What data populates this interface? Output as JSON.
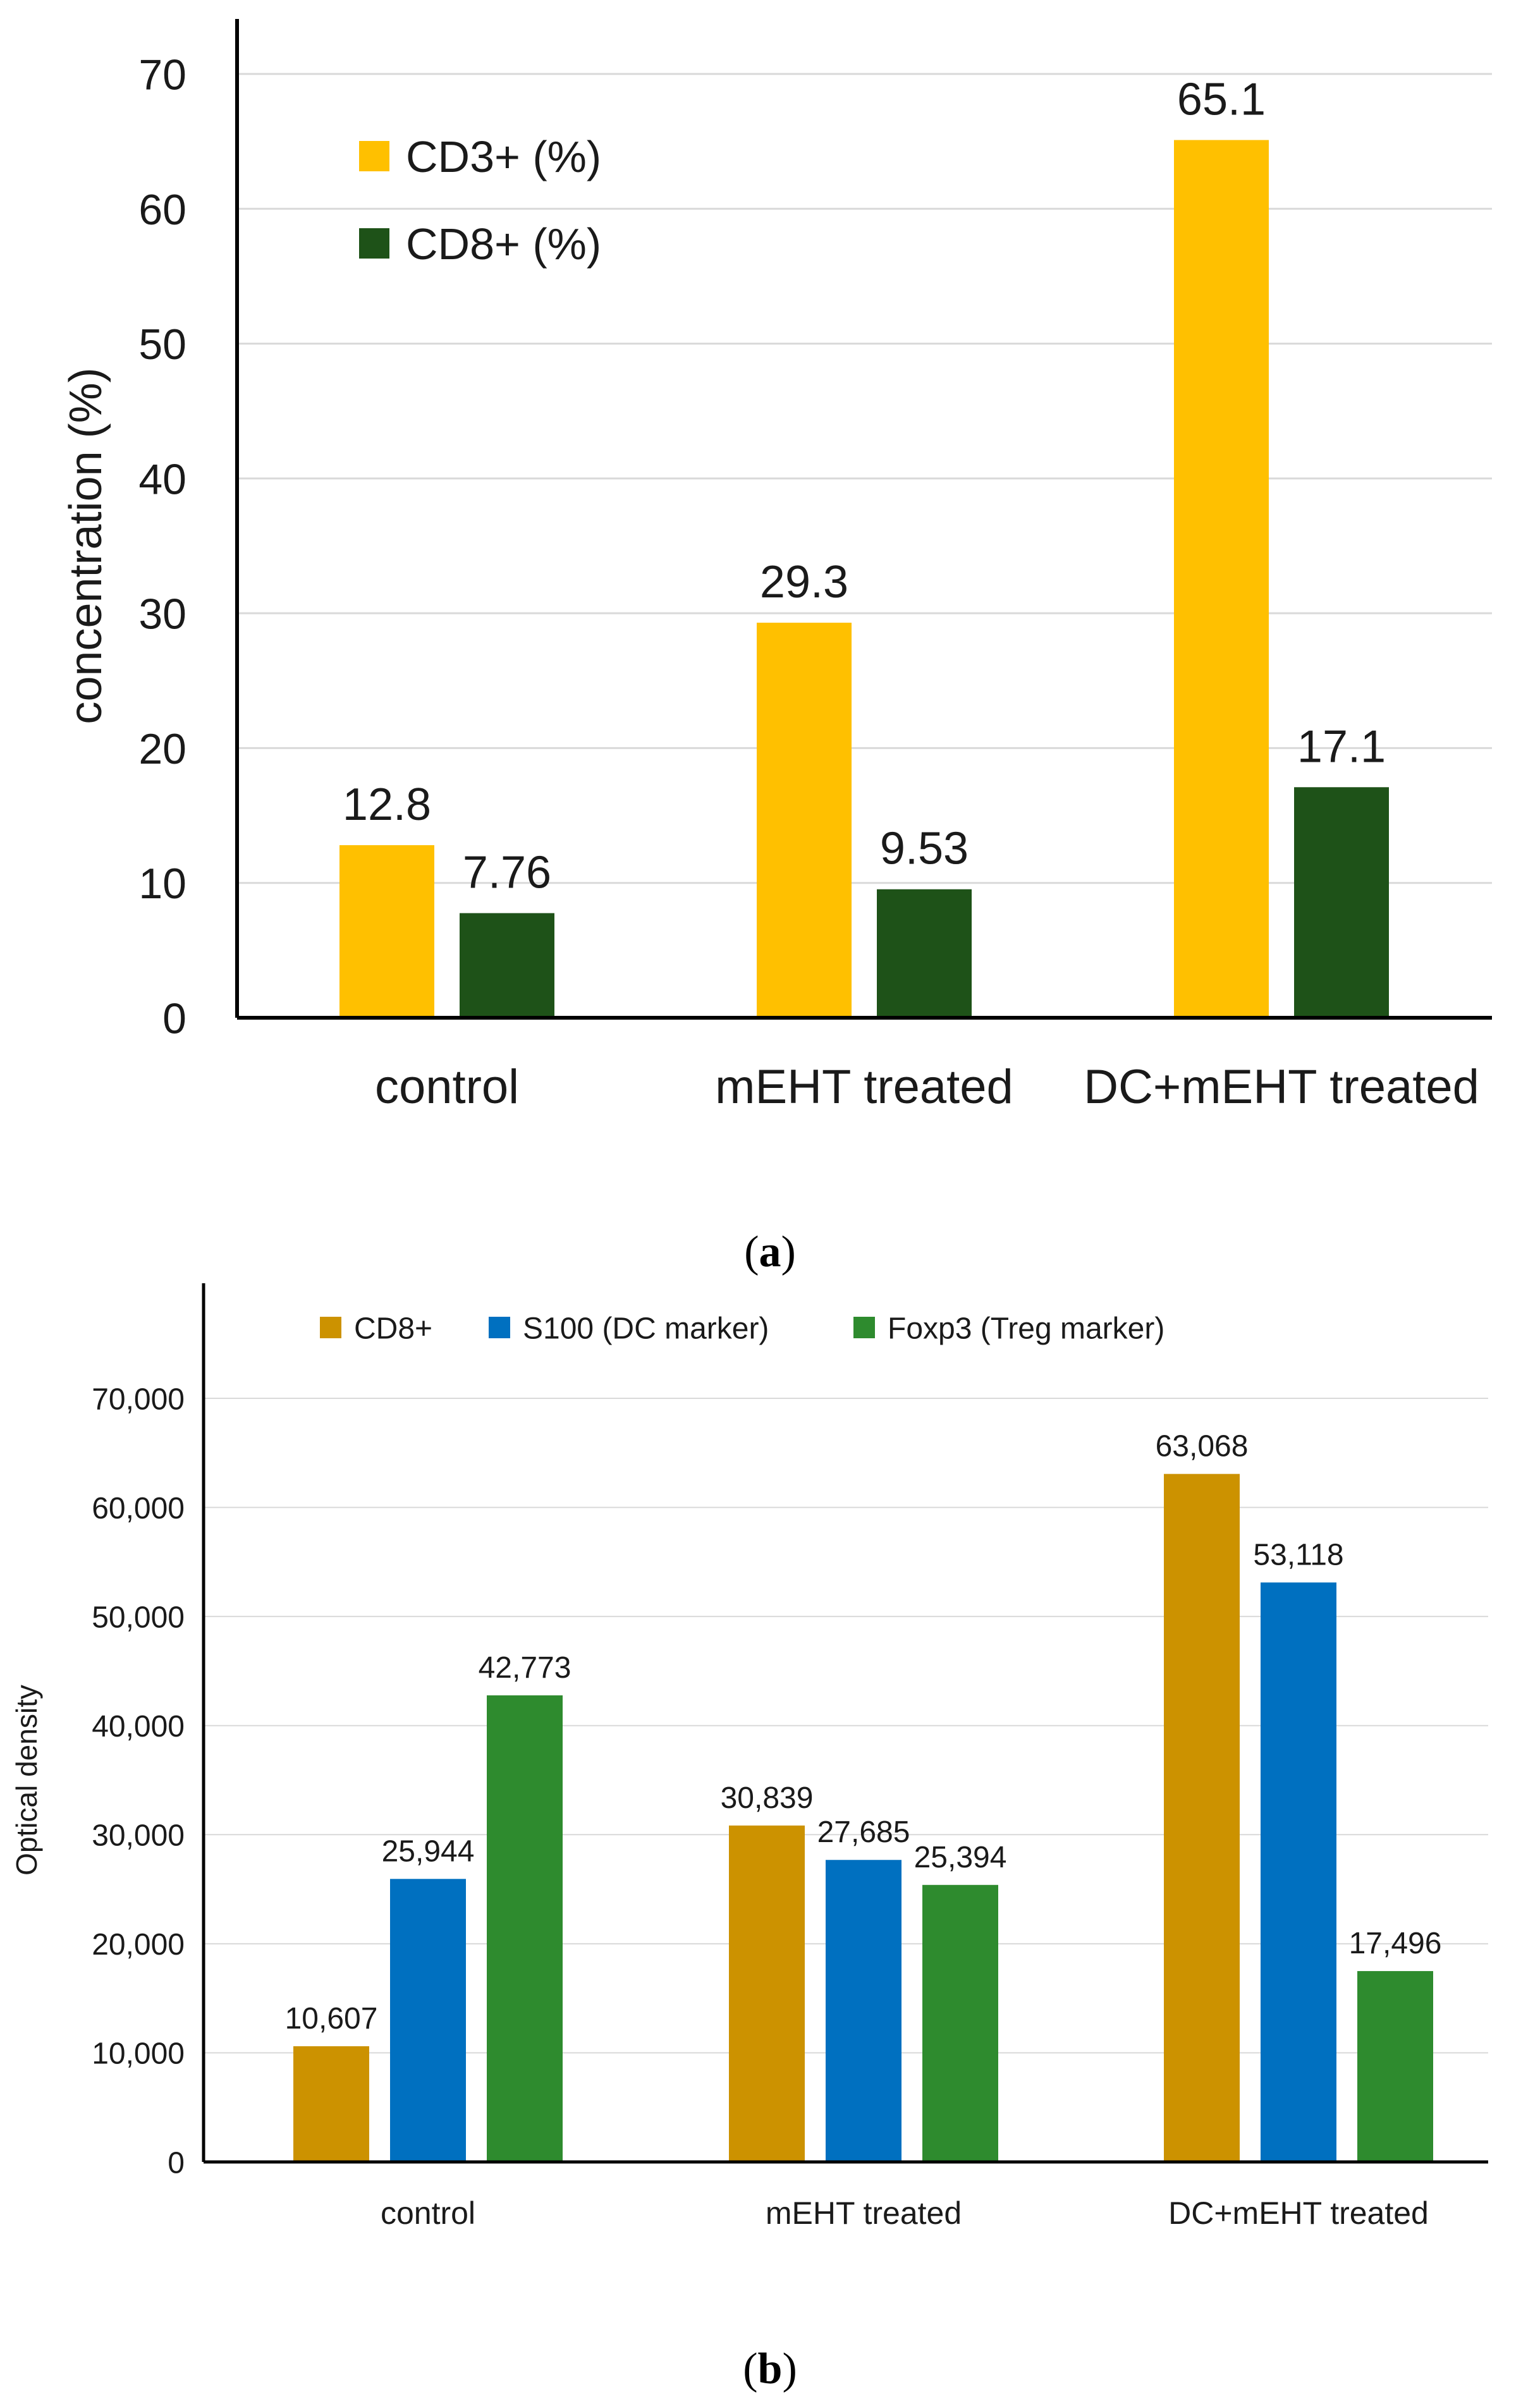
{
  "colors": {
    "cd3": "#FFC000",
    "cd8_a": "#1E5218",
    "cd8_b": "#CC9200",
    "s100": "#0070C0",
    "foxp3": "#2E8B2E",
    "axis": "#000000",
    "grid": "#D9D9D9",
    "text": "#1a1a1a"
  },
  "panel_a": {
    "caption_open": "(",
    "caption_letter": "a",
    "caption_close": ")"
  },
  "panel_b": {
    "caption_open": "(",
    "caption_letter": "b",
    "caption_close": ")"
  },
  "chart_data": [
    {
      "type": "bar",
      "categories": [
        "control",
        "mEHT treated",
        "DC+mEHT treated"
      ],
      "series": [
        {
          "name": "CD3+ (%)",
          "values": [
            12.8,
            29.3,
            65.1
          ],
          "labels": [
            "12.8",
            "29.3",
            "65.1"
          ],
          "color": "#FFC000"
        },
        {
          "name": "CD8+ (%)",
          "values": [
            7.76,
            9.53,
            17.1
          ],
          "labels": [
            "7.76",
            "9.53",
            "17.1"
          ],
          "color": "#1E5218"
        }
      ],
      "ylabel": "concentration (%)",
      "ylim": [
        0,
        70
      ],
      "yticks": [
        0,
        10,
        20,
        30,
        40,
        50,
        60,
        70
      ],
      "ytick_labels": [
        "0",
        "10",
        "20",
        "30",
        "40",
        "50",
        "60",
        "70"
      ],
      "grid": true,
      "legend": "top-left"
    },
    {
      "type": "bar",
      "categories": [
        "control",
        "mEHT treated",
        "DC+mEHT treated"
      ],
      "series": [
        {
          "name": "CD8+",
          "values": [
            10607,
            30839,
            63068
          ],
          "labels": [
            "10,607",
            "30,839",
            "63,068"
          ],
          "color": "#CC9200"
        },
        {
          "name": "S100 (DC marker)",
          "values": [
            25944,
            27685,
            53118
          ],
          "labels": [
            "25,944",
            "27,685",
            "53,118"
          ],
          "color": "#0070C0"
        },
        {
          "name": "Foxp3 (Treg marker)",
          "values": [
            42773,
            25394,
            17496
          ],
          "labels": [
            "42,773",
            "25,394",
            "17,496"
          ],
          "color": "#2E8B2E"
        }
      ],
      "ylabel": "Optical density",
      "ylim": [
        0,
        70000
      ],
      "yticks": [
        0,
        10000,
        20000,
        30000,
        40000,
        50000,
        60000,
        70000
      ],
      "ytick_labels": [
        "0",
        "10,000",
        "20,000",
        "30,000",
        "40,000",
        "50,000",
        "60,000",
        "70,000"
      ],
      "grid": true,
      "legend": "top"
    }
  ]
}
